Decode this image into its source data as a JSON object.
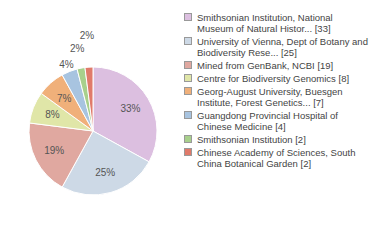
{
  "chart_data": {
    "type": "pie",
    "categories": [
      "Smithsonian Institution, National Museum of Natural Histor... [33]",
      "University of Vienna, Dept of Botany and Biodiversity Rese... [25]",
      "Mined from GenBank, NCBI [19]",
      "Centre for Biodiversity Genomics [8]",
      "Georg-August University, Buesgen Institute, Forest Genetics... [7]",
      "Guangdong Provincial Hospital of Chinese Medicine [4]",
      "Smithsonian Institution [2]",
      "Chinese Academy of Sciences, South China Botanical Garden [2]"
    ],
    "values": [
      33,
      25,
      19,
      8,
      7,
      4,
      2,
      2
    ],
    "value_labels": [
      "33%",
      "25%",
      "19%",
      "8%",
      "7%",
      "4%",
      "2%",
      "2%"
    ],
    "colors": [
      "#dcbfe0",
      "#cdd9e6",
      "#e0a8a0",
      "#e0e6a8",
      "#f0b07a",
      "#a8c4e0",
      "#a8d08c",
      "#e07a6a"
    ],
    "data_labels": true,
    "legend": "right"
  }
}
